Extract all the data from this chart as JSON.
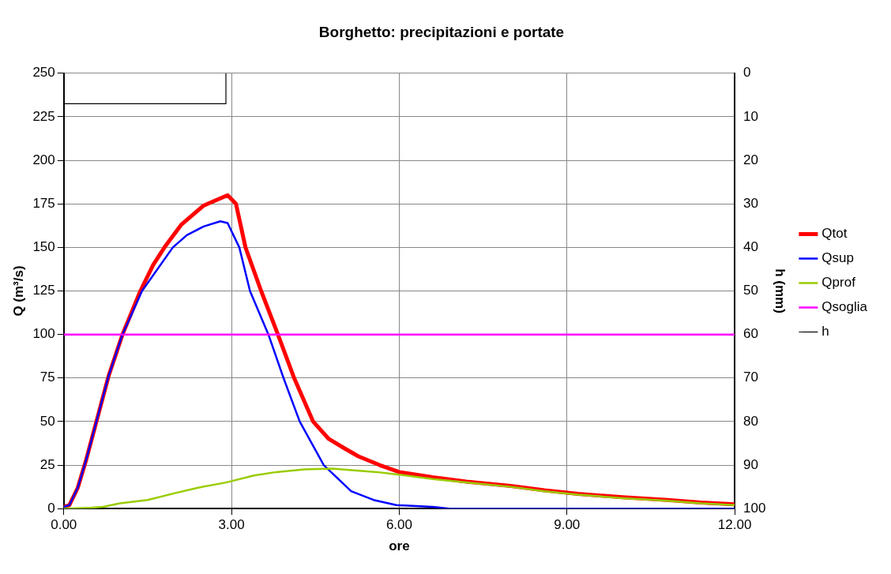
{
  "chart_data": {
    "type": "line",
    "title": "Borghetto: precipitazioni e portate",
    "xlabel": "ore",
    "ylabel": "Q (m³/s)",
    "y2label": "h (mm)",
    "xlim": [
      0,
      12
    ],
    "xticks": [
      {
        "value": 0,
        "label": "0.00"
      },
      {
        "value": 3,
        "label": "3.00"
      },
      {
        "value": 6,
        "label": "6.00"
      },
      {
        "value": 9,
        "label": "9.00"
      },
      {
        "value": 12,
        "label": "12.00"
      }
    ],
    "ylim": [
      0,
      250
    ],
    "yticks": [
      0,
      25,
      50,
      75,
      100,
      125,
      150,
      175,
      200,
      225,
      250
    ],
    "y2lim": [
      100,
      0
    ],
    "y2ticks": [
      0,
      10,
      20,
      30,
      40,
      50,
      60,
      70,
      80,
      90,
      100
    ],
    "grid": true,
    "legend": "right",
    "marker": "none",
    "line_style": "solid",
    "series": [
      {
        "name": "Qtot",
        "color": "#ff0000",
        "x": [
          0,
          0.1,
          0.25,
          0.4,
          0.5,
          0.65,
          0.8,
          1.05,
          1.37,
          1.6,
          1.8,
          2.1,
          2.5,
          2.93,
          3.08,
          3.25,
          3.53,
          3.83,
          4.12,
          4.46,
          4.74,
          5.0,
          5.27,
          5.65,
          6.0,
          6.6,
          7.2,
          8.0,
          8.6,
          9.2,
          10.0,
          10.8,
          11.4,
          12.0
        ],
        "values": [
          1,
          2,
          12,
          28,
          40,
          58,
          76,
          100,
          125,
          140,
          150,
          163,
          174,
          180,
          175,
          150,
          125,
          100,
          75,
          50,
          40,
          35,
          30,
          25,
          21,
          18,
          15.5,
          13,
          10.5,
          8.5,
          6.5,
          5,
          3.5,
          2.5
        ]
      },
      {
        "name": "Qsup",
        "color": "#0000ff",
        "x": [
          0,
          0.1,
          0.25,
          0.4,
          0.5,
          0.65,
          0.8,
          1.05,
          1.4,
          1.95,
          2.2,
          2.5,
          2.8,
          2.93,
          3.14,
          3.33,
          3.66,
          3.93,
          4.22,
          4.65,
          5.14,
          5.54,
          5.95,
          6.6,
          6.9,
          12.0
        ],
        "values": [
          1,
          2,
          12,
          28,
          40,
          58,
          76,
          100,
          125,
          150,
          157,
          162,
          165,
          164,
          150,
          125,
          100,
          75,
          50,
          25,
          10,
          5,
          2,
          1,
          0,
          0
        ]
      },
      {
        "name": "Qprof",
        "color": "#99cc00",
        "x": [
          0,
          0.5,
          0.7,
          1.0,
          1.5,
          2.0,
          2.4,
          2.9,
          3.4,
          3.8,
          4.3,
          4.8,
          5.2,
          5.6,
          6.0,
          6.6,
          7.2,
          8.0,
          8.6,
          9.2,
          10.0,
          10.8,
          11.4,
          12.0
        ],
        "values": [
          0,
          0.5,
          1,
          3,
          5,
          9,
          12,
          15,
          19,
          21,
          22.5,
          23,
          22,
          21,
          19.5,
          17,
          15,
          12.5,
          10,
          8,
          6,
          4.5,
          3,
          2
        ]
      },
      {
        "name": "Qsoglia",
        "color": "#ff00ff",
        "x": [
          0,
          12
        ],
        "values": [
          100,
          100
        ]
      },
      {
        "name": "h",
        "color": "#000000",
        "axis": "y2",
        "x": [
          0,
          2.9,
          2.9
        ],
        "values": [
          7,
          7,
          0
        ]
      }
    ]
  }
}
